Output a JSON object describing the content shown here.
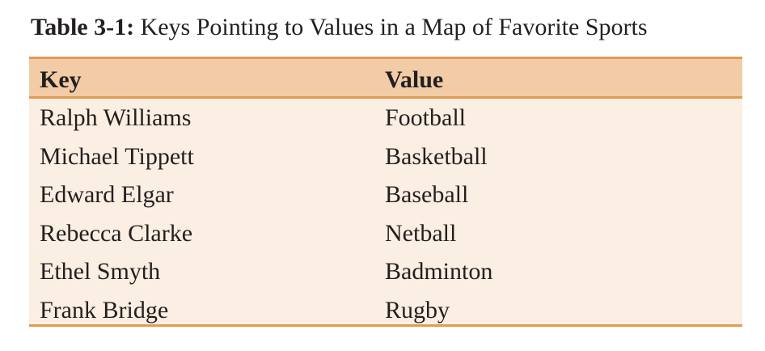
{
  "caption": {
    "label": "Table 3-1:",
    "text": "Keys Pointing to Values in a Map of Favorite Sports"
  },
  "table": {
    "headers": [
      "Key",
      "Value"
    ],
    "rows": [
      [
        "Ralph Williams",
        "Football"
      ],
      [
        "Michael Tippett",
        "Basketball"
      ],
      [
        "Edward Elgar",
        "Baseball"
      ],
      [
        "Rebecca Clarke",
        "Netball"
      ],
      [
        "Ethel Smyth",
        "Badminton"
      ],
      [
        "Frank Bridge",
        "Rugby"
      ]
    ]
  },
  "colors": {
    "rule": "#e49a52",
    "header_bg": "#f2cca6",
    "body_bg": "#fbeee2"
  }
}
